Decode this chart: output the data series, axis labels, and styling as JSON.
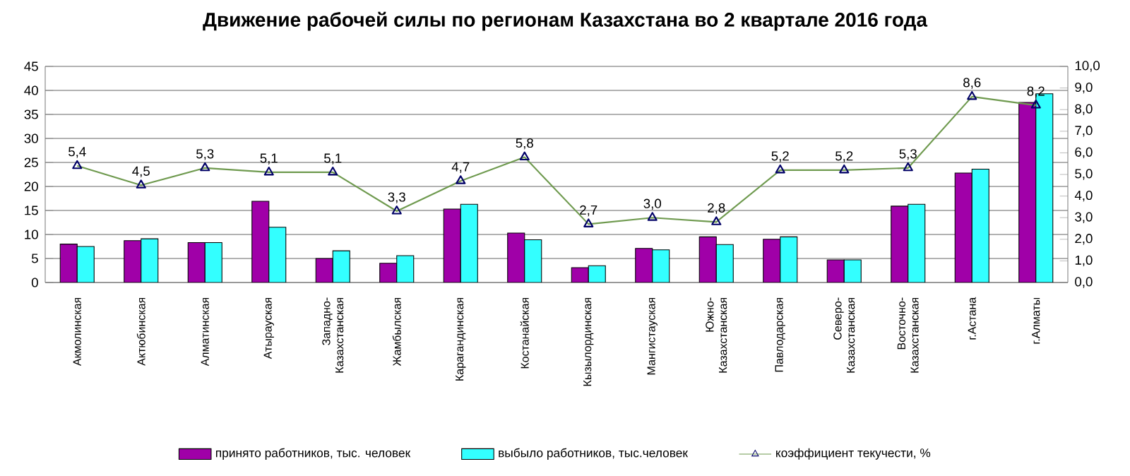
{
  "chart_data": {
    "type": "bar",
    "title": "Движение рабочей силы по регионам Казахстана во 2 квартале 2016 года",
    "categories": [
      "Акмолинская",
      "Актюбинская",
      "Алматинская",
      "Атырауская",
      "Западно-Казахстанская",
      "Жамбылская",
      "Карагандинская",
      "Костанайская",
      "Кызылординская",
      "Мангистауская",
      "Южно-Казахстанская",
      "Павлодарская",
      "Северо-Казахстанская",
      "Восточно-Казахстанская",
      "г.Астана",
      "г.Алматы"
    ],
    "series": [
      {
        "name": "принято работников, тыс. человек",
        "color": "#a000a8",
        "values": [
          8.0,
          8.7,
          8.3,
          16.9,
          5.0,
          4.0,
          15.3,
          10.3,
          3.1,
          7.1,
          9.5,
          9.0,
          4.7,
          15.9,
          22.8,
          37.5
        ]
      },
      {
        "name": "выбыло работников, тыс.человек",
        "color": "#33ffff",
        "values": [
          7.5,
          9.1,
          8.3,
          11.5,
          6.6,
          5.6,
          16.3,
          8.9,
          3.5,
          6.8,
          7.9,
          9.5,
          4.7,
          16.3,
          23.6,
          39.3
        ]
      },
      {
        "name": "коэффициент текучести, %",
        "type": "line",
        "axis": "y2",
        "color": "#6f9a4f",
        "marker": "triangle",
        "values": [
          5.4,
          4.5,
          5.3,
          5.1,
          5.1,
          3.3,
          4.7,
          5.8,
          2.7,
          3.0,
          2.8,
          5.2,
          5.2,
          5.3,
          8.6,
          8.2
        ],
        "value_labels": [
          "5,4",
          "4,5",
          "5,3",
          "5,1",
          "5,1",
          "3,3",
          "4,7",
          "5,8",
          "2,7",
          "3,0",
          "2,8",
          "5,2",
          "5,2",
          "5,3",
          "8,6",
          "8,2"
        ]
      }
    ],
    "ylim": [
      0,
      45
    ],
    "yticks": [
      0,
      5,
      10,
      15,
      20,
      25,
      30,
      35,
      40,
      45
    ],
    "y2lim": [
      0,
      10
    ],
    "y2ticks": [
      {
        "value": 0,
        "label": "0,0"
      },
      {
        "value": 1,
        "label": "1,0"
      },
      {
        "value": 2,
        "label": "2,0"
      },
      {
        "value": 3,
        "label": "3,0"
      },
      {
        "value": 4,
        "label": "4,0"
      },
      {
        "value": 5,
        "label": "5,0"
      },
      {
        "value": 6,
        "label": "6,0"
      },
      {
        "value": 7,
        "label": "7,0"
      },
      {
        "value": 8,
        "label": "8,0"
      },
      {
        "value": 9,
        "label": "9,0"
      },
      {
        "value": 10,
        "label": "10,0"
      }
    ],
    "grid": "y",
    "legend": "bottom"
  }
}
